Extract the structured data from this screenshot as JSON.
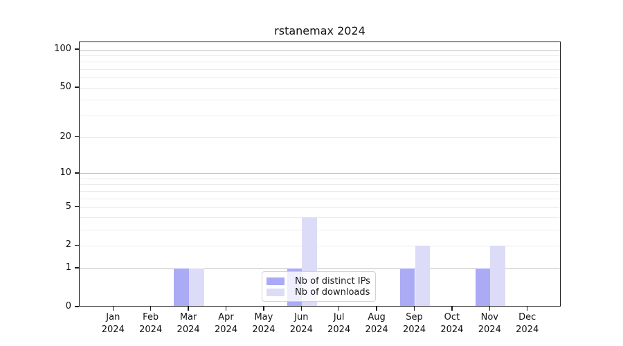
{
  "title": "rstanemax 2024",
  "chart_data": {
    "type": "bar",
    "title": "rstanemax 2024",
    "categories": [
      "Jan",
      "Feb",
      "Mar",
      "Apr",
      "May",
      "Jun",
      "Jul",
      "Aug",
      "Sep",
      "Oct",
      "Nov",
      "Dec"
    ],
    "category_year": "2024",
    "series": [
      {
        "name": "Nb of distinct IPs",
        "color": "#aaaaf5",
        "values": [
          0,
          0,
          1,
          0,
          0,
          1,
          0,
          0,
          1,
          0,
          1,
          0
        ]
      },
      {
        "name": "Nb of downloads",
        "color": "#dcdcf8",
        "values": [
          0,
          0,
          1,
          0,
          0,
          4,
          0,
          0,
          2,
          0,
          2,
          0
        ]
      }
    ],
    "yscale": "log1p",
    "ylim": [
      0,
      115
    ],
    "yticks": [
      0,
      1,
      2,
      5,
      10,
      20,
      50,
      100
    ],
    "grid": {
      "major_ticks": [
        1,
        10,
        100
      ],
      "minor_ticks": [
        2,
        3,
        4,
        5,
        6,
        7,
        8,
        9,
        20,
        30,
        40,
        50,
        60,
        70,
        80,
        90
      ]
    },
    "legend_position": "lower center",
    "xlabel": "",
    "ylabel": ""
  },
  "colors": {
    "major_grid": "#bfbfbf",
    "minor_grid": "#eaeaea",
    "spine": "#1a1a1a",
    "text": "#111111"
  }
}
